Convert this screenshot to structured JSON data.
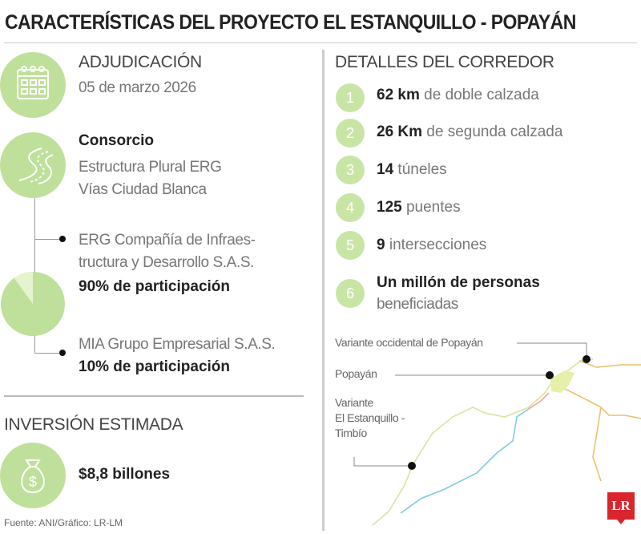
{
  "title": "CARACTERÍSTICAS DEL PROYECTO EL ESTANQUILLO - POPAYÁN",
  "colors": {
    "accent_green": "#bfe09a",
    "logo_red": "#d9262c"
  },
  "adjudicacion": {
    "icon": "calendar-icon",
    "heading": "ADJUDICACIÓN",
    "date": "05 de marzo 2026"
  },
  "consorcio": {
    "icon": "road-icon",
    "heading": "Consorcio",
    "name_line1": "Estructura Plural ERG",
    "name_line2": "Vías Ciudad Blanca",
    "members": [
      {
        "name_line1": "ERG Compañía de Infraes-",
        "name_line2": "tructura y Desarrollo S.A.S.",
        "share": "90% de participación",
        "percent": 90
      },
      {
        "name_line1": "MIA Grupo Empresarial S.A.S.",
        "share": "10% de participación",
        "percent": 10
      }
    ]
  },
  "inversion": {
    "icon": "money-bag-icon",
    "heading": "INVERSIÓN ESTIMADA",
    "value": "$8,8 billones"
  },
  "source": "Fuente: ANI/Gráfico: LR-LM",
  "detalles": {
    "heading": "DETALLES DEL CORREDOR",
    "items": [
      {
        "n": "1",
        "bold": "62 km",
        "text": " de doble calzada"
      },
      {
        "n": "2",
        "bold": "26 Km",
        "text": " de segunda calzada"
      },
      {
        "n": "3",
        "bold": "14",
        "text": " túneles"
      },
      {
        "n": "4",
        "bold": "125",
        "text": " puentes"
      },
      {
        "n": "5",
        "bold": "9",
        "text": " intersecciones"
      },
      {
        "n": "6",
        "bold": "Un millón de personas",
        "text": "beneficiadas"
      }
    ]
  },
  "map": {
    "labels": {
      "variante_occidental": "Variante occidental de Popayán",
      "popayan": "Popayán",
      "estanquillo_1": "Variante",
      "estanquillo_2": "El Estanquillo -",
      "estanquillo_3": "Timbío"
    }
  },
  "logo": "LR"
}
